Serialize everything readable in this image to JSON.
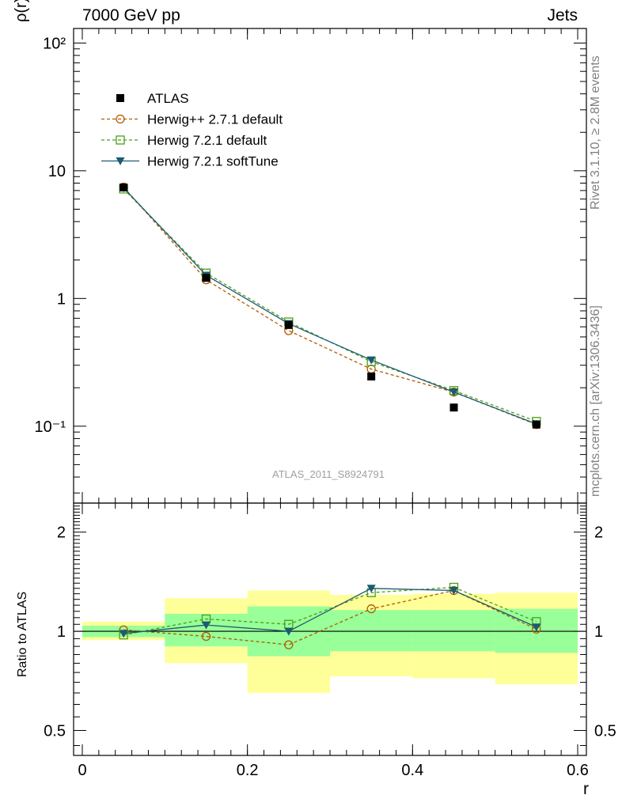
{
  "header": {
    "left": "7000 GeV pp",
    "right": "Jets"
  },
  "side_notes": {
    "rivet": "Rivet 3.1.10, ≥ 2.8M events",
    "mcplots": "mcplots.cern.ch [arXiv:1306.3436]"
  },
  "watermark": "ATLAS_2011_S8924791",
  "chart_data": {
    "type": "line",
    "xlabel": "r",
    "xlim": [
      0,
      0.6
    ],
    "x_ticks": [
      "0",
      "0.2",
      "0.4",
      "0.6"
    ],
    "x_tick_values": [
      0,
      0.2,
      0.4,
      0.6
    ],
    "main": {
      "ylabel": "ρ(r)",
      "yscale": "log",
      "ylim": [
        0.025,
        130
      ],
      "y_ticks": [
        {
          "value": 0.1,
          "label": "10⁻¹"
        },
        {
          "value": 1,
          "label": "1"
        },
        {
          "value": 10,
          "label": "10"
        },
        {
          "value": 100,
          "label": "10²"
        }
      ],
      "legend_position": "top-left",
      "x": [
        0.05,
        0.15,
        0.25,
        0.35,
        0.45,
        0.55
      ],
      "series": [
        {
          "name": "ATLAS",
          "marker": "filled-square",
          "line": "none",
          "color": "#000000",
          "values": [
            7.4,
            1.45,
            0.62,
            0.245,
            0.14,
            0.103
          ]
        },
        {
          "name": "Herwig++ 2.7.1 default",
          "marker": "open-circle",
          "line": "dashed",
          "color": "#b35900",
          "values": [
            7.45,
            1.4,
            0.56,
            0.28,
            0.185,
            0.103
          ]
        },
        {
          "name": "Herwig 7.2.1 default",
          "marker": "open-square",
          "line": "dashed",
          "color": "#4c9e1a",
          "values": [
            7.2,
            1.58,
            0.655,
            0.32,
            0.19,
            0.109
          ]
        },
        {
          "name": "Herwig 7.2.1 softTune",
          "marker": "filled-triangle-down",
          "line": "solid",
          "color": "#1c5a73",
          "values": [
            7.35,
            1.52,
            0.635,
            0.33,
            0.185,
            0.104
          ]
        }
      ]
    },
    "ratio": {
      "ylabel": "Ratio to ATLAS",
      "yscale": "log",
      "ylim": [
        0.42,
        2.45
      ],
      "y_ticks": [
        {
          "value": 0.5,
          "label": "0.5"
        },
        {
          "value": 1,
          "label": "1"
        },
        {
          "value": 2,
          "label": "2"
        }
      ],
      "bands": [
        {
          "x_range": [
            0,
            0.1
          ],
          "yellow": [
            0.94,
            1.07
          ],
          "green": [
            0.96,
            1.04
          ]
        },
        {
          "x_range": [
            0.1,
            0.2
          ],
          "yellow": [
            0.8,
            1.26
          ],
          "green": [
            0.9,
            1.13
          ]
        },
        {
          "x_range": [
            0.2,
            0.3
          ],
          "yellow": [
            0.65,
            1.33
          ],
          "green": [
            0.84,
            1.19
          ]
        },
        {
          "x_range": [
            0.3,
            0.4
          ],
          "yellow": [
            0.73,
            1.29
          ],
          "green": [
            0.87,
            1.16
          ]
        },
        {
          "x_range": [
            0.4,
            0.5
          ],
          "yellow": [
            0.72,
            1.3
          ],
          "green": [
            0.87,
            1.16
          ]
        },
        {
          "x_range": [
            0.5,
            0.6
          ],
          "yellow": [
            0.69,
            1.31
          ],
          "green": [
            0.86,
            1.17
          ]
        }
      ],
      "reference_line": 1,
      "x": [
        0.05,
        0.15,
        0.25,
        0.35,
        0.45,
        0.55
      ],
      "series": [
        {
          "name": "Herwig++ 2.7.1 default",
          "color": "#b35900",
          "marker": "open-circle",
          "line": "dashed",
          "values": [
            1.01,
            0.965,
            0.91,
            1.17,
            1.33,
            1.015
          ]
        },
        {
          "name": "Herwig 7.2.1 default",
          "color": "#4c9e1a",
          "marker": "open-square",
          "line": "dashed",
          "values": [
            0.975,
            1.09,
            1.05,
            1.31,
            1.36,
            1.07
          ]
        },
        {
          "name": "Herwig 7.2.1 softTune",
          "color": "#1c5a73",
          "marker": "filled-triangle-down",
          "line": "solid",
          "values": [
            0.985,
            1.045,
            1.0,
            1.35,
            1.33,
            1.03
          ]
        }
      ]
    }
  }
}
